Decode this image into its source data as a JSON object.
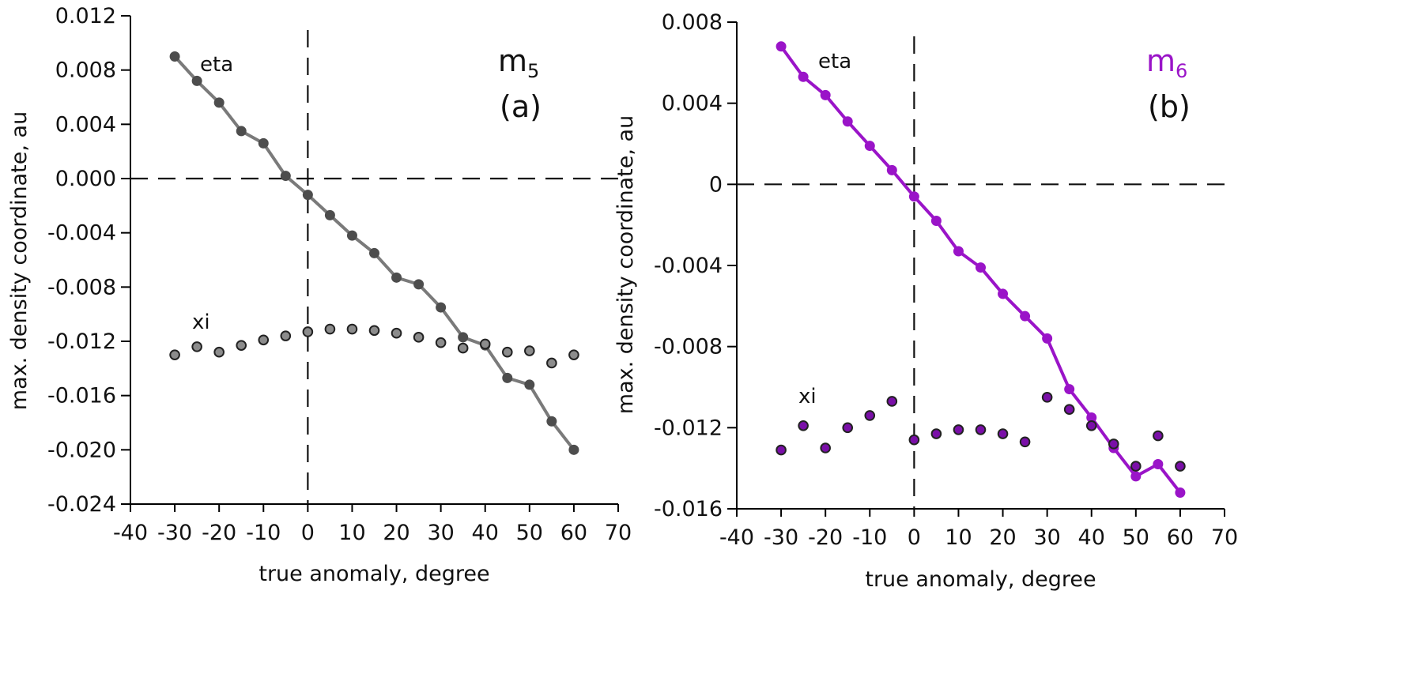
{
  "charts": [
    {
      "id": "a",
      "panel_label": "(a)",
      "model_label": "m",
      "model_subscript": "5",
      "colors": {
        "line": "#7a7a7a",
        "marker": "#4d4d4d",
        "xi_marker": "#8c8c8c",
        "label": "#111111",
        "axis": "#000000"
      }
    },
    {
      "id": "b",
      "panel_label": "(b)",
      "model_label": "m",
      "model_subscript": "6",
      "colors": {
        "line": "#9a14c8",
        "marker": "#9a14c8",
        "xi_marker": "#7a0fa8",
        "label": "#9a14c8",
        "axis": "#000000"
      }
    }
  ],
  "chart_data": [
    {
      "type": "line",
      "xlabel": "true anomaly, degree",
      "ylabel": "max. density coordinate, au",
      "xlim": [
        -40,
        70
      ],
      "ylim": [
        -0.024,
        0.012
      ],
      "xticks": [
        -40,
        -30,
        -20,
        -10,
        0,
        10,
        20,
        30,
        40,
        50,
        60,
        70
      ],
      "yticks": [
        -0.024,
        -0.02,
        -0.016,
        -0.012,
        -0.008,
        -0.004,
        0.0,
        0.004,
        0.008,
        0.012
      ],
      "xtick_labels": [
        "-40",
        "-30",
        "-20",
        "-10",
        "0",
        "10",
        "20",
        "30",
        "40",
        "50",
        "60",
        "70"
      ],
      "ytick_labels": [
        "-0.024",
        "-0.020",
        "-0.016",
        "-0.012",
        "-0.008",
        "-0.004",
        "0.000",
        "0.004",
        "0.008",
        "0.012"
      ],
      "reference_lines": {
        "x": 0,
        "y": 0,
        "style": "dashed"
      },
      "series": [
        {
          "name": "eta",
          "style": "line+markers",
          "x": [
            -30,
            -25,
            -20,
            -15,
            -10,
            -5,
            0,
            5,
            10,
            15,
            20,
            25,
            30,
            35,
            40,
            45,
            50,
            55,
            60
          ],
          "y": [
            0.009,
            0.0072,
            0.0056,
            0.0035,
            0.0026,
            0.0002,
            -0.0012,
            -0.0027,
            -0.0042,
            -0.0055,
            -0.0073,
            -0.0078,
            -0.0095,
            -0.0117,
            -0.0123,
            -0.0147,
            -0.0152,
            -0.0179,
            -0.02
          ]
        },
        {
          "name": "xi",
          "style": "markers",
          "x": [
            -30,
            -25,
            -20,
            -15,
            -10,
            -5,
            0,
            5,
            10,
            15,
            20,
            25,
            30,
            35,
            40,
            45,
            50,
            55,
            60
          ],
          "y": [
            -0.013,
            -0.0124,
            -0.0128,
            -0.0123,
            -0.0119,
            -0.0116,
            -0.0113,
            -0.0111,
            -0.0111,
            -0.0112,
            -0.0114,
            -0.0117,
            -0.0121,
            -0.0125,
            -0.0122,
            -0.0128,
            -0.0127,
            -0.0136,
            -0.013
          ]
        }
      ]
    },
    {
      "type": "line",
      "xlabel": "true anomaly, degree",
      "ylabel": "max. density coordinate, au",
      "xlim": [
        -40,
        70
      ],
      "ylim": [
        -0.016,
        0.008
      ],
      "xticks": [
        -40,
        -30,
        -20,
        -10,
        0,
        10,
        20,
        30,
        40,
        50,
        60,
        70
      ],
      "yticks": [
        -0.016,
        -0.012,
        -0.008,
        -0.004,
        0,
        0.004,
        0.008
      ],
      "xtick_labels": [
        "-40",
        "-30",
        "-20",
        "-10",
        "0",
        "10",
        "20",
        "30",
        "40",
        "50",
        "60",
        "70"
      ],
      "ytick_labels": [
        "-0.016",
        "-0.012",
        "-0.008",
        "-0.004",
        "0",
        "0.004",
        "0.008"
      ],
      "reference_lines": {
        "x": 0,
        "y": 0,
        "style": "dashed"
      },
      "series": [
        {
          "name": "eta",
          "style": "line+markers",
          "x": [
            -30,
            -25,
            -20,
            -15,
            -10,
            -5,
            0,
            5,
            10,
            15,
            20,
            25,
            30,
            35,
            40,
            45,
            50,
            55,
            60
          ],
          "y": [
            0.0068,
            0.0053,
            0.0044,
            0.0031,
            0.0019,
            0.0007,
            -0.0006,
            -0.0018,
            -0.0033,
            -0.0041,
            -0.0054,
            -0.0065,
            -0.0076,
            -0.0101,
            -0.0115,
            -0.013,
            -0.0144,
            -0.0138,
            -0.0152
          ]
        },
        {
          "name": "xi",
          "style": "markers",
          "x": [
            -30,
            -25,
            -20,
            -15,
            -10,
            -5,
            0,
            5,
            10,
            15,
            20,
            25,
            30,
            35,
            40,
            45,
            50,
            55,
            60
          ],
          "y": [
            -0.0131,
            -0.0119,
            -0.013,
            -0.012,
            -0.0114,
            -0.0107,
            -0.0126,
            -0.0123,
            -0.0121,
            -0.0121,
            -0.0123,
            -0.0127,
            -0.0105,
            -0.0111,
            -0.0119,
            -0.0128,
            -0.0139,
            -0.0124,
            -0.0139
          ]
        }
      ]
    }
  ]
}
